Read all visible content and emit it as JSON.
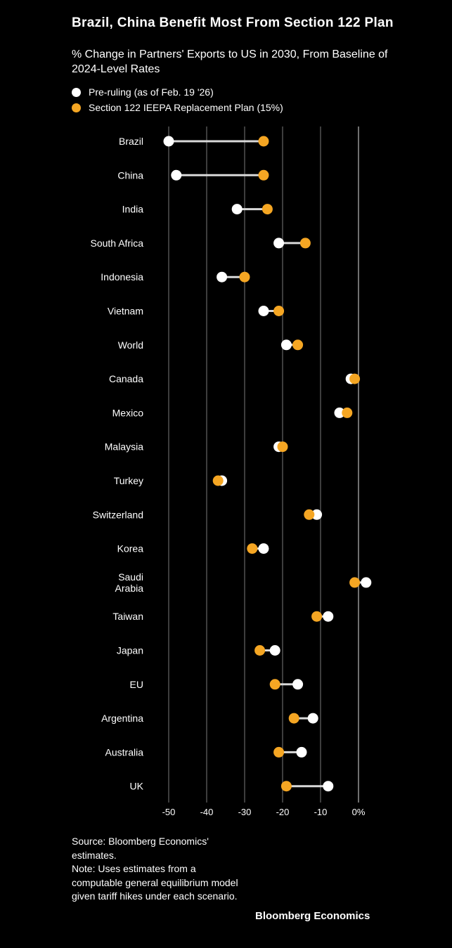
{
  "chart_data": {
    "type": "dot-range",
    "title": "Brazil, China Benefit Most From Section 122 Plan",
    "subtitle": "% Change in Partners' Exports to US in 2030, From Baseline of 2024-Level Rates",
    "legend": [
      {
        "name": "Pre-ruling (as of Feb. 19 '26)",
        "color": "#ffffff"
      },
      {
        "name": "Section 122 IEEPA Replacement Plan (15%)",
        "color": "#f5a623"
      }
    ],
    "legend_position": "top-left",
    "xlim": [
      -50,
      0
    ],
    "x_ticks": [
      "-50",
      "-40",
      "-30",
      "-20",
      "-10",
      "0%"
    ],
    "x_tick_values": [
      -50,
      -40,
      -30,
      -20,
      -10,
      0
    ],
    "grid": true,
    "categories": [
      "Brazil",
      "China",
      "India",
      "South Africa",
      "Indonesia",
      "Vietnam",
      "World",
      "Canada",
      "Mexico",
      "Malaysia",
      "Turkey",
      "Switzerland",
      "Korea",
      "Saudi Arabia",
      "Taiwan",
      "Japan",
      "EU",
      "Argentina",
      "Australia",
      "UK"
    ],
    "category_lines": [
      [
        "Brazil"
      ],
      [
        "China"
      ],
      [
        "India"
      ],
      [
        "South Africa"
      ],
      [
        "Indonesia"
      ],
      [
        "Vietnam"
      ],
      [
        "World"
      ],
      [
        "Canada"
      ],
      [
        "Mexico"
      ],
      [
        "Malaysia"
      ],
      [
        "Turkey"
      ],
      [
        "Switzerland"
      ],
      [
        "Korea"
      ],
      [
        "Saudi",
        "Arabia"
      ],
      [
        "Taiwan"
      ],
      [
        "Japan"
      ],
      [
        "EU"
      ],
      [
        "Argentina"
      ],
      [
        "Australia"
      ],
      [
        "UK"
      ]
    ],
    "series": [
      {
        "name": "Pre-ruling (as of Feb. 19 '26)",
        "values": [
          -50,
          -48,
          -32,
          -21,
          -36,
          -25,
          -19,
          -2,
          -5,
          -21,
          -36,
          -11,
          -25,
          2,
          -8,
          -22,
          -16,
          -12,
          -15,
          -8
        ]
      },
      {
        "name": "Section 122 IEEPA Replacement Plan (15%)",
        "values": [
          -25,
          -25,
          -24,
          -14,
          -30,
          -21,
          -16,
          -1,
          -3,
          -20,
          -37,
          -13,
          -28,
          -1,
          -11,
          -26,
          -22,
          -17,
          -21,
          -19
        ]
      }
    ]
  },
  "footer": {
    "source": "Source: Bloomberg Economics' estimates.",
    "note": "Note: Uses estimates from a computable general equilibrium model given tariff hikes under each scenario.",
    "brand": "Bloomberg Economics"
  },
  "colors": {
    "background": "#000000",
    "pre": "#ffffff",
    "plan": "#f5a623",
    "connector": "#d9d9d9",
    "grid": "#666666"
  }
}
